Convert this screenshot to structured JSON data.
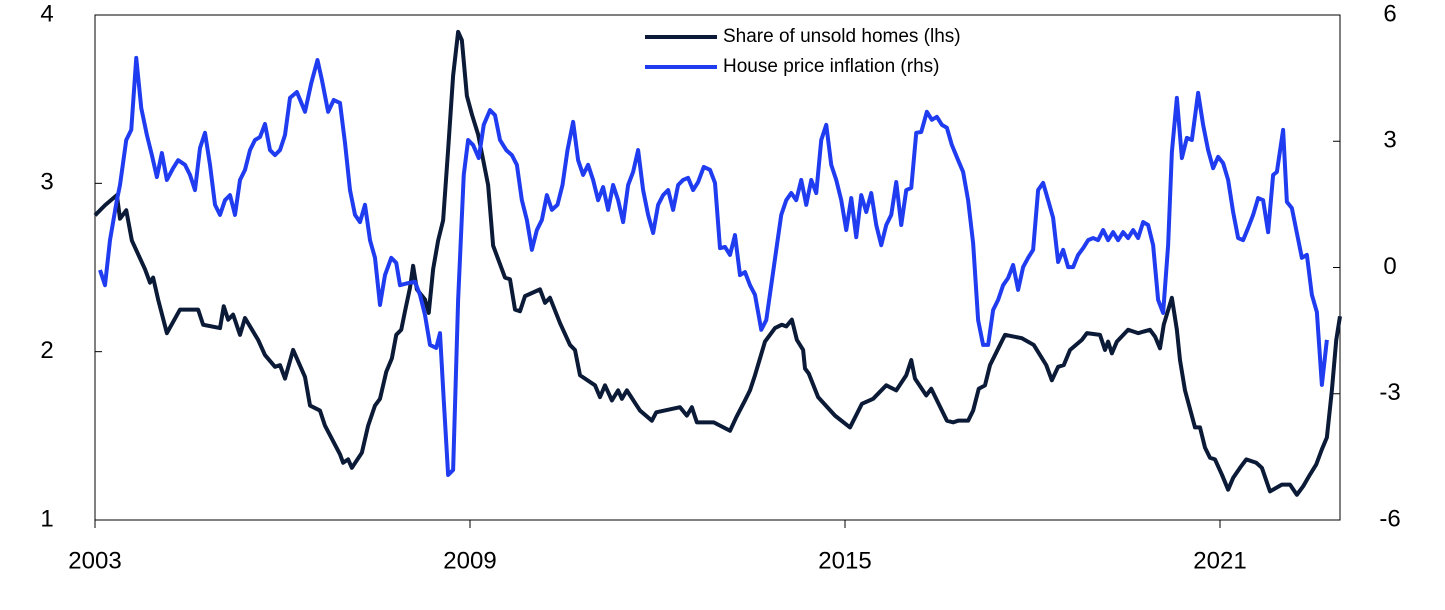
{
  "chart_data": {
    "type": "line",
    "xlim": [
      2003,
      2022.92
    ],
    "xticks": [
      2003,
      2009,
      2015,
      2021
    ],
    "ylim": [
      1,
      4
    ],
    "yticks": [
      1,
      2,
      3,
      4
    ],
    "y2lim": [
      -6,
      6
    ],
    "y2ticks": [
      -6,
      -3,
      0,
      3,
      6
    ],
    "legend": "upper center",
    "series": [
      {
        "name": "Share of unsold homes (lhs)",
        "color": "#0b1a36",
        "axis": "y",
        "x": [
          2003.0,
          2003.16,
          2003.35,
          2003.4,
          2003.5,
          2003.59,
          2003.8,
          2003.88,
          2003.93,
          2004.01,
          2004.15,
          2004.36,
          2004.65,
          2004.73,
          2005.0,
          2005.06,
          2005.13,
          2005.21,
          2005.32,
          2005.4,
          2005.61,
          2005.72,
          2005.88,
          2005.96,
          2006.04,
          2006.17,
          2006.36,
          2006.44,
          2006.6,
          2006.68,
          2006.92,
          2006.97,
          2007.05,
          2007.11,
          2007.27,
          2007.37,
          2007.48,
          2007.56,
          2007.66,
          2007.75,
          2007.82,
          2007.9,
          2007.96,
          2008.04,
          2008.09,
          2008.15,
          2008.28,
          2008.34,
          2008.41,
          2008.49,
          2008.57,
          2008.65,
          2008.73,
          2008.81,
          2008.87,
          2008.95,
          2009.03,
          2009.13,
          2009.21,
          2009.29,
          2009.37,
          2009.56,
          2009.64,
          2009.72,
          2009.8,
          2009.88,
          2010.12,
          2010.2,
          2010.28,
          2010.44,
          2010.6,
          2010.68,
          2010.76,
          2011.0,
          2011.08,
          2011.16,
          2011.27,
          2011.37,
          2011.43,
          2011.51,
          2011.72,
          2011.91,
          2011.98,
          2012.36,
          2012.47,
          2012.55,
          2012.63,
          2012.9,
          2013.16,
          2013.26,
          2013.4,
          2013.48,
          2013.56,
          2013.72,
          2013.88,
          2013.99,
          2014.06,
          2014.15,
          2014.23,
          2014.33,
          2014.36,
          2014.42,
          2014.57,
          2014.84,
          2015.08,
          2015.27,
          2015.45,
          2015.66,
          2015.82,
          2015.98,
          2016.06,
          2016.12,
          2016.3,
          2016.38,
          2016.63,
          2016.73,
          2016.81,
          2016.97,
          2017.05,
          2017.14,
          2017.24,
          2017.32,
          2017.48,
          2017.56,
          2017.83,
          2018.02,
          2018.22,
          2018.31,
          2018.41,
          2018.5,
          2018.6,
          2018.79,
          2018.87,
          2019.08,
          2019.16,
          2019.21,
          2019.27,
          2019.35,
          2019.53,
          2019.69,
          2019.88,
          2019.96,
          2020.04,
          2020.1,
          2020.23,
          2020.31,
          2020.36,
          2020.44,
          2020.6,
          2020.68,
          2020.76,
          2020.84,
          2020.92,
          2021.03,
          2021.13,
          2021.21,
          2021.32,
          2021.42,
          2021.58,
          2021.67,
          2021.8,
          2021.99,
          2022.12,
          2022.23,
          2022.33,
          2022.44,
          2022.54,
          2022.63,
          2022.71,
          2022.79,
          2022.86,
          2022.92
        ],
        "values": [
          2.81,
          2.87,
          2.93,
          2.79,
          2.84,
          2.66,
          2.49,
          2.41,
          2.44,
          2.31,
          2.11,
          2.25,
          2.25,
          2.16,
          2.14,
          2.27,
          2.19,
          2.22,
          2.1,
          2.2,
          2.07,
          1.98,
          1.91,
          1.92,
          1.84,
          2.01,
          1.85,
          1.68,
          1.65,
          1.56,
          1.39,
          1.34,
          1.36,
          1.31,
          1.4,
          1.56,
          1.68,
          1.72,
          1.88,
          1.96,
          2.1,
          2.13,
          2.24,
          2.38,
          2.51,
          2.37,
          2.31,
          2.23,
          2.49,
          2.66,
          2.78,
          3.2,
          3.64,
          3.9,
          3.85,
          3.52,
          3.41,
          3.29,
          3.14,
          2.99,
          2.63,
          2.44,
          2.43,
          2.25,
          2.24,
          2.33,
          2.37,
          2.29,
          2.32,
          2.17,
          2.04,
          2.01,
          1.86,
          1.8,
          1.73,
          1.8,
          1.71,
          1.77,
          1.72,
          1.77,
          1.65,
          1.59,
          1.64,
          1.67,
          1.62,
          1.67,
          1.58,
          1.58,
          1.53,
          1.61,
          1.71,
          1.77,
          1.86,
          2.06,
          2.14,
          2.16,
          2.15,
          2.19,
          2.07,
          2.01,
          1.9,
          1.87,
          1.73,
          1.62,
          1.55,
          1.69,
          1.72,
          1.8,
          1.77,
          1.86,
          1.95,
          1.84,
          1.74,
          1.78,
          1.59,
          1.58,
          1.59,
          1.59,
          1.65,
          1.78,
          1.8,
          1.92,
          2.04,
          2.1,
          2.08,
          2.04,
          1.92,
          1.83,
          1.91,
          1.92,
          2.01,
          2.07,
          2.11,
          2.1,
          2.01,
          2.06,
          1.99,
          2.06,
          2.13,
          2.11,
          2.13,
          2.09,
          2.02,
          2.16,
          2.32,
          2.13,
          1.95,
          1.77,
          1.55,
          1.55,
          1.43,
          1.37,
          1.36,
          1.27,
          1.18,
          1.25,
          1.31,
          1.36,
          1.34,
          1.31,
          1.17,
          1.21,
          1.21,
          1.15,
          1.2,
          1.27,
          1.33,
          1.42,
          1.49,
          1.77,
          2.07,
          2.21
        ]
      },
      {
        "name": "House price inflation (rhs)",
        "color": "#1f3cf0",
        "axis": "y2",
        "x": [
          2003.08,
          2003.16,
          2003.24,
          2003.35,
          2003.4,
          2003.5,
          2003.58,
          2003.66,
          2003.74,
          2003.83,
          2003.91,
          2003.99,
          2004.07,
          2004.15,
          2004.25,
          2004.33,
          2004.44,
          2004.52,
          2004.6,
          2004.68,
          2004.76,
          2004.84,
          2004.92,
          2005.0,
          2005.08,
          2005.16,
          2005.24,
          2005.32,
          2005.4,
          2005.48,
          2005.56,
          2005.64,
          2005.72,
          2005.8,
          2005.88,
          2005.96,
          2006.04,
          2006.12,
          2006.23,
          2006.36,
          2006.46,
          2006.56,
          2006.63,
          2006.73,
          2006.82,
          2006.92,
          2007.0,
          2007.08,
          2007.16,
          2007.24,
          2007.32,
          2007.4,
          2007.48,
          2007.56,
          2007.64,
          2007.74,
          2007.82,
          2007.88,
          2008.01,
          2008.12,
          2008.2,
          2008.28,
          2008.36,
          2008.46,
          2008.52,
          2008.58,
          2008.65,
          2008.73,
          2008.81,
          2008.9,
          2008.97,
          2009.05,
          2009.14,
          2009.22,
          2009.32,
          2009.4,
          2009.48,
          2009.58,
          2009.67,
          2009.75,
          2009.83,
          2009.91,
          2009.99,
          2010.07,
          2010.15,
          2010.23,
          2010.31,
          2010.4,
          2010.48,
          2010.56,
          2010.65,
          2010.73,
          2010.81,
          2010.89,
          2010.97,
          2011.05,
          2011.13,
          2011.21,
          2011.29,
          2011.37,
          2011.45,
          2011.53,
          2011.61,
          2011.69,
          2011.77,
          2011.85,
          2011.93,
          2012.01,
          2012.09,
          2012.17,
          2012.25,
          2012.33,
          2012.41,
          2012.49,
          2012.57,
          2012.65,
          2012.74,
          2012.84,
          2012.92,
          2013.0,
          2013.08,
          2013.16,
          2013.24,
          2013.32,
          2013.4,
          2013.48,
          2013.56,
          2013.66,
          2013.74,
          2013.82,
          2013.9,
          2013.98,
          2014.06,
          2014.14,
          2014.22,
          2014.3,
          2014.38,
          2014.46,
          2014.54,
          2014.62,
          2014.7,
          2014.78,
          2014.86,
          2014.94,
          2015.02,
          2015.1,
          2015.18,
          2015.26,
          2015.34,
          2015.42,
          2015.5,
          2015.58,
          2015.66,
          2015.74,
          2015.82,
          2015.9,
          2015.98,
          2016.06,
          2016.14,
          2016.22,
          2016.31,
          2016.39,
          2016.47,
          2016.55,
          2016.63,
          2016.71,
          2016.81,
          2016.89,
          2016.97,
          2017.05,
          2017.13,
          2017.21,
          2017.29,
          2017.37,
          2017.45,
          2017.53,
          2017.61,
          2017.69,
          2017.77,
          2017.85,
          2017.93,
          2018.01,
          2018.09,
          2018.17,
          2018.25,
          2018.33,
          2018.41,
          2018.49,
          2018.57,
          2018.65,
          2018.73,
          2018.81,
          2018.89,
          2018.97,
          2019.05,
          2019.13,
          2019.21,
          2019.29,
          2019.37,
          2019.45,
          2019.53,
          2019.61,
          2019.69,
          2019.77,
          2019.85,
          2019.93,
          2020.01,
          2020.09,
          2020.17,
          2020.23,
          2020.31,
          2020.39,
          2020.47,
          2020.55,
          2020.65,
          2020.73,
          2020.81,
          2020.89,
          2020.97,
          2021.05,
          2021.13,
          2021.21,
          2021.29,
          2021.37,
          2021.45,
          2021.53,
          2021.61,
          2021.69,
          2021.77,
          2021.85,
          2021.91,
          2022.01,
          2022.07,
          2022.15,
          2022.23,
          2022.31,
          2022.39,
          2022.47,
          2022.55,
          2022.63,
          2022.71
        ],
        "values": [
          -0.06,
          -0.42,
          0.65,
          1.6,
          1.96,
          3.03,
          3.27,
          4.98,
          3.79,
          3.15,
          2.67,
          2.15,
          2.72,
          2.08,
          2.36,
          2.55,
          2.44,
          2.2,
          1.84,
          2.84,
          3.2,
          2.44,
          1.49,
          1.25,
          1.6,
          1.72,
          1.25,
          2.08,
          2.32,
          2.79,
          3.03,
          3.1,
          3.41,
          2.79,
          2.67,
          2.79,
          3.15,
          4.03,
          4.17,
          3.7,
          4.38,
          4.93,
          4.46,
          3.7,
          3.98,
          3.91,
          2.96,
          1.84,
          1.25,
          1.08,
          1.49,
          0.65,
          0.23,
          -0.89,
          -0.18,
          0.23,
          0.11,
          -0.42,
          -0.37,
          -0.34,
          -0.65,
          -1.13,
          -1.84,
          -1.91,
          -1.56,
          -3.15,
          -4.93,
          -4.81,
          -0.77,
          2.2,
          3.03,
          2.91,
          2.6,
          3.39,
          3.74,
          3.62,
          3.03,
          2.79,
          2.67,
          2.44,
          1.6,
          1.13,
          0.42,
          0.89,
          1.13,
          1.72,
          1.37,
          1.49,
          1.96,
          2.79,
          3.46,
          2.55,
          2.2,
          2.44,
          2.08,
          1.6,
          1.91,
          1.37,
          1.96,
          1.6,
          1.08,
          1.96,
          2.27,
          2.79,
          1.84,
          1.25,
          0.82,
          1.49,
          1.72,
          1.84,
          1.37,
          1.96,
          2.08,
          2.13,
          1.84,
          2.03,
          2.39,
          2.32,
          2.01,
          0.46,
          0.49,
          0.3,
          0.77,
          -0.18,
          -0.11,
          -0.42,
          -0.65,
          -1.48,
          -1.25,
          -0.42,
          0.42,
          1.25,
          1.6,
          1.77,
          1.6,
          2.08,
          1.49,
          2.08,
          1.77,
          3.03,
          3.39,
          2.44,
          2.08,
          1.6,
          0.89,
          1.65,
          0.72,
          1.72,
          1.32,
          1.77,
          1.01,
          0.53,
          1.01,
          1.25,
          2.03,
          1.01,
          1.84,
          1.89,
          3.2,
          3.22,
          3.7,
          3.51,
          3.58,
          3.39,
          3.32,
          2.91,
          2.55,
          2.27,
          1.6,
          0.58,
          -1.25,
          -1.84,
          -1.84,
          -1.01,
          -0.77,
          -0.42,
          -0.25,
          0.06,
          -0.53,
          0.01,
          0.23,
          0.42,
          1.84,
          2.01,
          1.6,
          1.18,
          0.13,
          0.42,
          0.01,
          0.01,
          0.3,
          0.46,
          0.65,
          0.7,
          0.65,
          0.89,
          0.65,
          0.84,
          0.65,
          0.84,
          0.7,
          0.89,
          0.7,
          1.08,
          1.01,
          0.53,
          -0.77,
          -1.08,
          0.53,
          2.74,
          4.03,
          2.6,
          3.08,
          3.03,
          4.15,
          3.39,
          2.79,
          2.36,
          2.63,
          2.48,
          2.08,
          1.32,
          0.7,
          0.65,
          0.94,
          1.25,
          1.65,
          1.6,
          0.84,
          2.2,
          2.27,
          3.27,
          1.56,
          1.41,
          0.82,
          0.23,
          0.3,
          -0.65,
          -1.06,
          -2.79,
          -1.72
        ]
      }
    ]
  }
}
